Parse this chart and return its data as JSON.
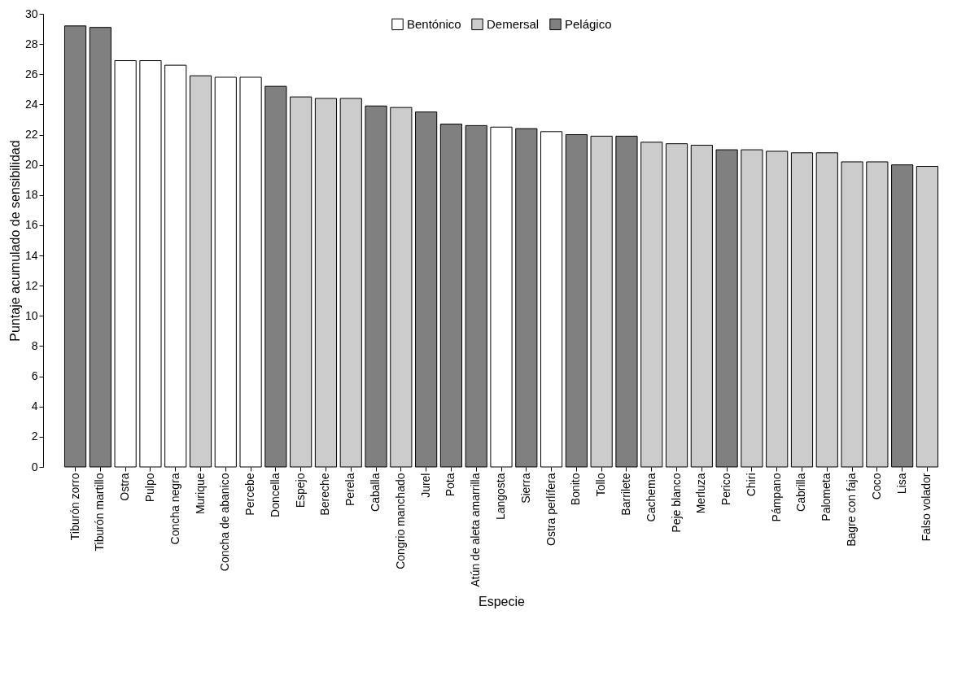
{
  "chart_data": {
    "type": "bar",
    "xlabel": "Especie",
    "ylabel": "Puntaje acumulado de sensibilidad",
    "categories": [
      "Tiburón zorro",
      "Tiburón martillo",
      "Ostra",
      "Pulpo",
      "Concha negra",
      "Murique",
      "Concha de abanico",
      "Percebe",
      "Doncella",
      "Espejo",
      "Bereche",
      "Perela",
      "Caballa",
      "Congrio manchado",
      "Jurel",
      "Pota",
      "Atún de aleta amarrilla",
      "Langosta",
      "Sierra",
      "Ostra perlífera",
      "Bonito",
      "Tollo",
      "Barrilete",
      "Cachema",
      "Peje blanco",
      "Merluza",
      "Perico",
      "Chiri",
      "Pámpano",
      "Cabrilla",
      "Palometa",
      "Bagre con faja",
      "Coco",
      "Lisa",
      "Falso volador"
    ],
    "series": [
      {
        "name": "Bentónico",
        "color": "#ffffff",
        "values": [
          null,
          null,
          26.9,
          26.9,
          26.6,
          null,
          25.8,
          25.8,
          null,
          null,
          null,
          null,
          null,
          null,
          null,
          null,
          null,
          22.5,
          null,
          22.2,
          null,
          null,
          null,
          null,
          null,
          null,
          null,
          null,
          null,
          null,
          null,
          null,
          null,
          null,
          null
        ]
      },
      {
        "name": "Demersal",
        "color": "#cccccc",
        "values": [
          null,
          null,
          null,
          null,
          null,
          25.9,
          null,
          null,
          null,
          24.5,
          24.4,
          24.4,
          null,
          23.8,
          null,
          null,
          null,
          null,
          null,
          null,
          null,
          21.9,
          null,
          21.5,
          21.4,
          21.3,
          null,
          21.0,
          20.9,
          20.8,
          20.8,
          20.2,
          20.2,
          null,
          19.9
        ]
      },
      {
        "name": "Pelágico",
        "color": "#808080",
        "values": [
          29.2,
          29.1,
          null,
          null,
          null,
          null,
          null,
          null,
          25.2,
          null,
          null,
          null,
          23.9,
          null,
          23.5,
          22.7,
          22.6,
          null,
          22.4,
          null,
          22.0,
          null,
          21.9,
          null,
          null,
          null,
          21.0,
          null,
          null,
          null,
          null,
          null,
          null,
          20.0,
          null
        ]
      }
    ],
    "ylim": [
      0,
      30
    ],
    "yticks": [
      0,
      2,
      4,
      6,
      8,
      10,
      12,
      14,
      16,
      18,
      20,
      22,
      24,
      26,
      28,
      30
    ],
    "legend": "top",
    "grid": false
  }
}
